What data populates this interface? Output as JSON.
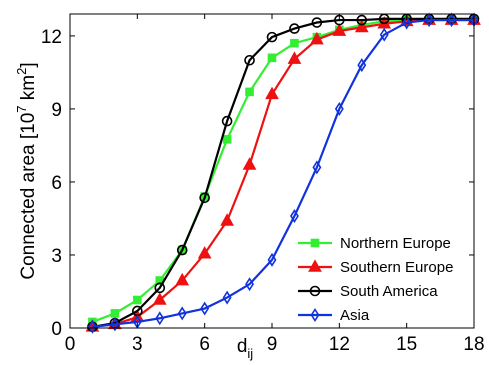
{
  "chart_data": {
    "type": "line",
    "xlabel": "d",
    "xlabel_sub": "ij",
    "ylabel": "Connected area [10",
    "ylabel_sup1": "7",
    "ylabel_mid": " km",
    "ylabel_sup2": "2",
    "ylabel_end": "]",
    "xlim": [
      0,
      18
    ],
    "ylim": [
      0,
      12.9
    ],
    "xticks": [
      0,
      3,
      6,
      9,
      12,
      15,
      18
    ],
    "yticks": [
      0,
      3,
      6,
      9,
      12
    ],
    "grid": false,
    "legend_position": "bottom-right",
    "x": [
      1,
      2,
      3,
      4,
      5,
      6,
      7,
      8,
      9,
      10,
      11,
      12,
      13,
      14,
      15,
      16,
      17,
      18
    ],
    "series": [
      {
        "name": "Northern Europe",
        "color": "#33ee33",
        "marker": "square",
        "values": [
          0.25,
          0.6,
          1.15,
          1.95,
          3.2,
          5.4,
          7.75,
          9.7,
          11.1,
          11.7,
          11.95,
          12.25,
          12.45,
          12.6,
          12.65,
          12.65,
          12.65,
          12.65
        ]
      },
      {
        "name": "Southern Europe",
        "color": "#ee1111",
        "marker": "triangle",
        "values": [
          0.05,
          0.15,
          0.45,
          1.15,
          1.95,
          3.05,
          4.4,
          6.7,
          9.6,
          11.05,
          11.85,
          12.2,
          12.35,
          12.5,
          12.6,
          12.65,
          12.65,
          12.65
        ]
      },
      {
        "name": "South America",
        "color": "#000000",
        "marker": "circle",
        "values": [
          0.05,
          0.2,
          0.7,
          1.65,
          3.2,
          5.35,
          8.5,
          11.0,
          11.95,
          12.3,
          12.55,
          12.65,
          12.65,
          12.7,
          12.7,
          12.7,
          12.7,
          12.7
        ]
      },
      {
        "name": "Asia",
        "color": "#1133dd",
        "marker": "diamond",
        "values": [
          0.05,
          0.15,
          0.25,
          0.4,
          0.6,
          0.8,
          1.25,
          1.8,
          2.8,
          4.6,
          6.6,
          9.0,
          10.8,
          12.05,
          12.55,
          12.65,
          12.65,
          12.65
        ]
      }
    ]
  }
}
